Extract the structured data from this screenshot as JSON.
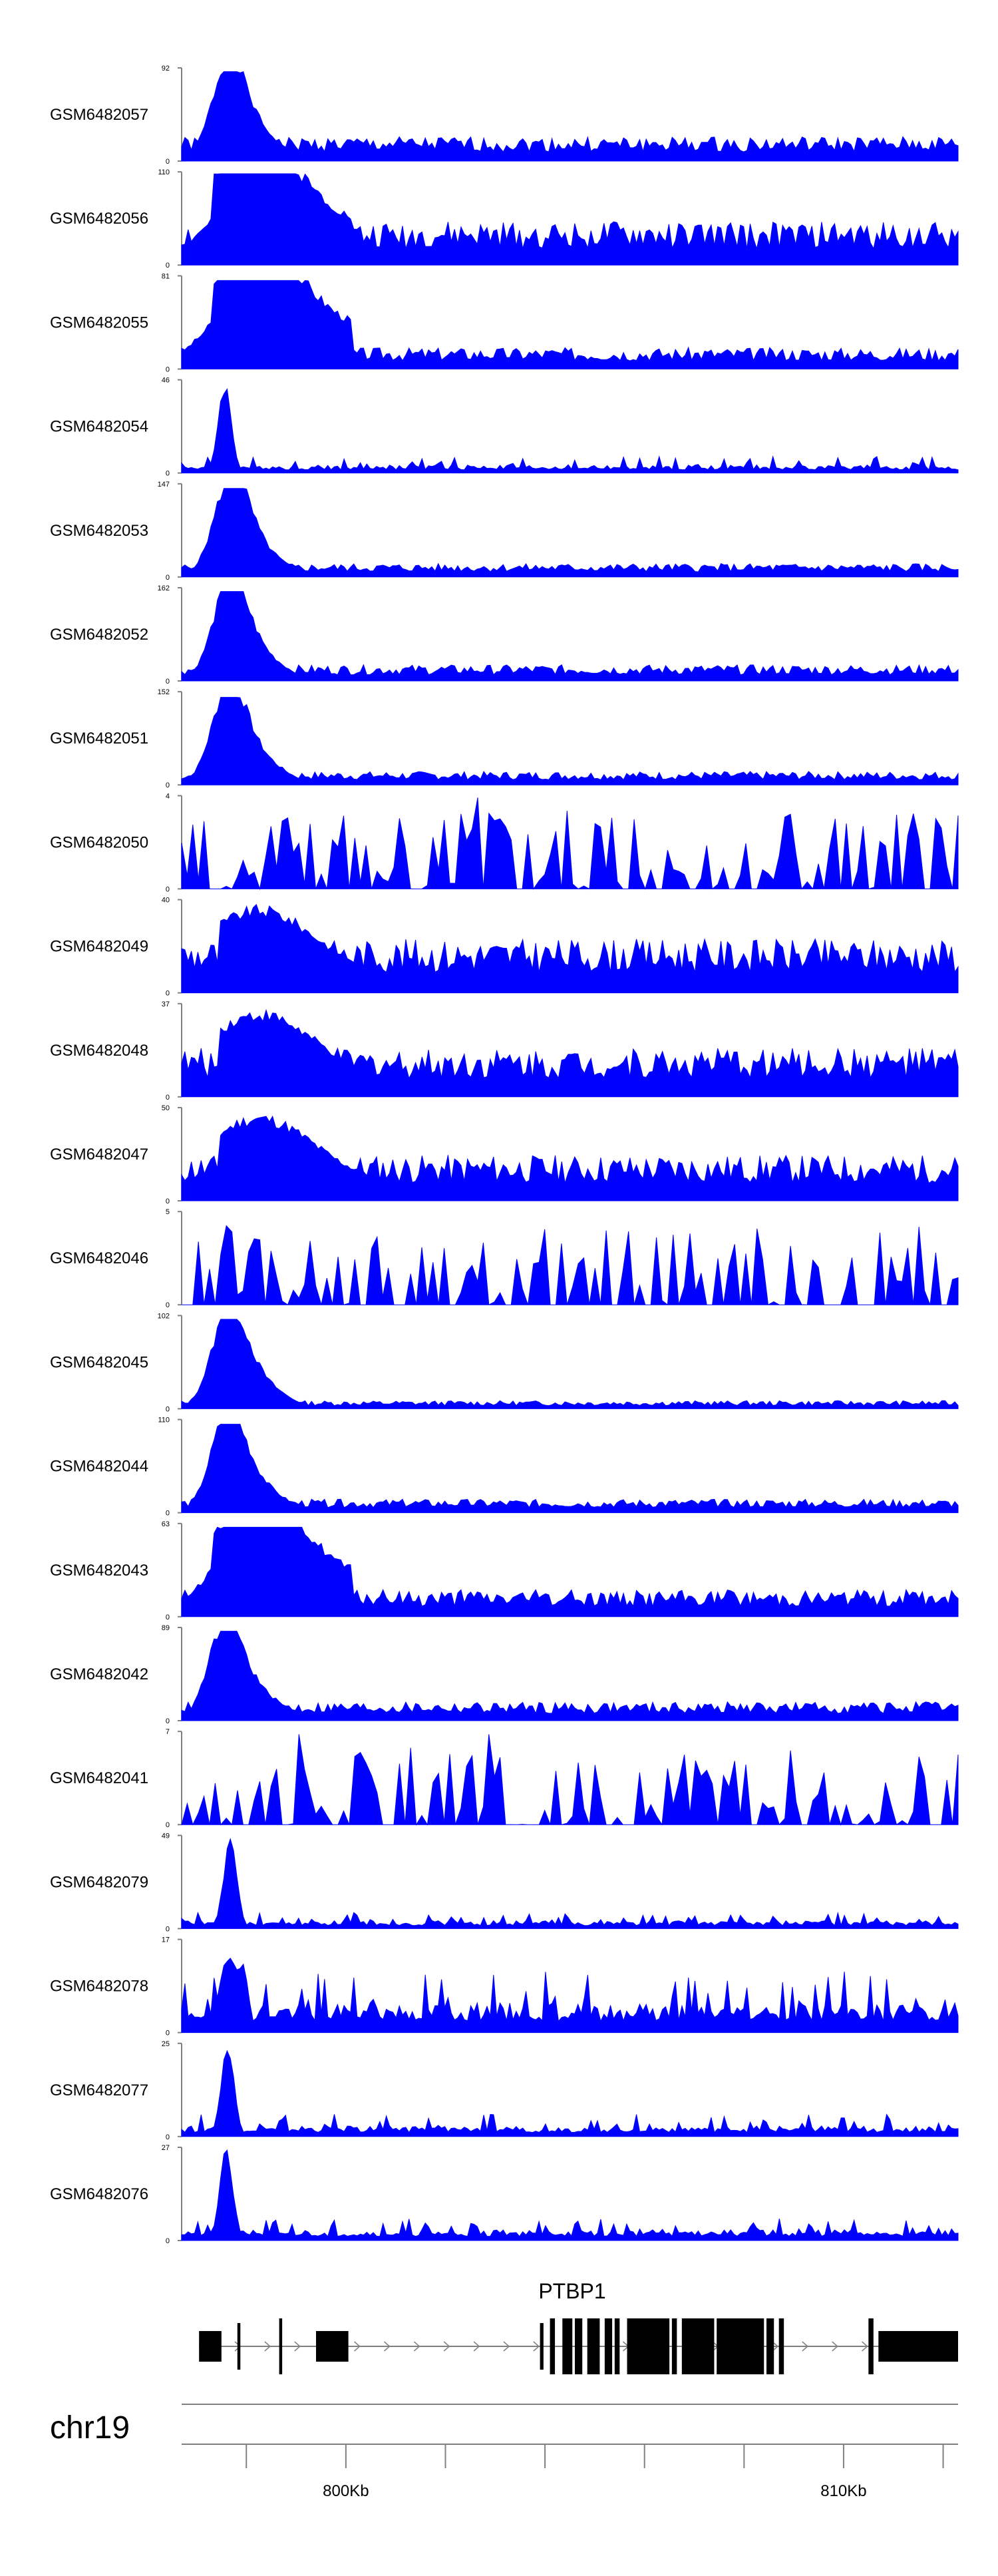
{
  "chart_data": {
    "type": "area",
    "title": "",
    "fill_color": "#0000ff",
    "axis_color": "#808080",
    "chromosome": "chr19",
    "x_range_kb": [
      796.7,
      812.3
    ],
    "x_ticks_kb": [
      798,
      800,
      802,
      804,
      806,
      808,
      810,
      812
    ],
    "x_tick_labels": [
      {
        "value": 800,
        "label": "800Kb"
      },
      {
        "value": 810,
        "label": "810Kb"
      }
    ],
    "tracks": [
      {
        "name": "GSM6482057",
        "max": 92,
        "max_label": "92",
        "zero_label": "0",
        "profile": "peak",
        "seed": 1,
        "level": 0.18,
        "peak": 0.96
      },
      {
        "name": "GSM6482056",
        "max": 110,
        "max_label": "110",
        "zero_label": "0",
        "profile": "broad",
        "seed": 2,
        "level": 0.32,
        "peak": 0.98
      },
      {
        "name": "GSM6482055",
        "max": 81,
        "max_label": "81",
        "zero_label": "0",
        "profile": "broad",
        "seed": 3,
        "level": 0.16,
        "peak": 0.95
      },
      {
        "name": "GSM6482054",
        "max": 46,
        "max_label": "46",
        "zero_label": "0",
        "profile": "spiky_peak",
        "seed": 4,
        "level": 0.06,
        "peak": 0.95
      },
      {
        "name": "GSM6482053",
        "max": 147,
        "max_label": "147",
        "zero_label": "0",
        "profile": "peak",
        "seed": 5,
        "level": 0.1,
        "peak": 0.95
      },
      {
        "name": "GSM6482052",
        "max": 162,
        "max_label": "162",
        "zero_label": "0",
        "profile": "peak",
        "seed": 6,
        "level": 0.12,
        "peak": 0.96
      },
      {
        "name": "GSM6482051",
        "max": 152,
        "max_label": "152",
        "zero_label": "0",
        "profile": "peak",
        "seed": 7,
        "level": 0.1,
        "peak": 0.94
      },
      {
        "name": "GSM6482050",
        "max": 4,
        "max_label": "4",
        "zero_label": "0",
        "profile": "spikes",
        "seed": 8,
        "level": 0.0,
        "peak": 0.98
      },
      {
        "name": "GSM6482049",
        "max": 40,
        "max_label": "40",
        "zero_label": "0",
        "profile": "high",
        "seed": 9,
        "level": 0.4,
        "peak": 0.96
      },
      {
        "name": "GSM6482048",
        "max": 37,
        "max_label": "37",
        "zero_label": "0",
        "profile": "high",
        "seed": 10,
        "level": 0.36,
        "peak": 0.96
      },
      {
        "name": "GSM6482047",
        "max": 50,
        "max_label": "50",
        "zero_label": "0",
        "profile": "high",
        "seed": 11,
        "level": 0.34,
        "peak": 0.98
      },
      {
        "name": "GSM6482046",
        "max": 5,
        "max_label": "5",
        "zero_label": "0",
        "profile": "spikes",
        "seed": 12,
        "level": 0.0,
        "peak": 0.98
      },
      {
        "name": "GSM6482045",
        "max": 102,
        "max_label": "102",
        "zero_label": "0",
        "profile": "peak",
        "seed": 13,
        "level": 0.06,
        "peak": 0.96
      },
      {
        "name": "GSM6482044",
        "max": 110,
        "max_label": "110",
        "zero_label": "0",
        "profile": "peak",
        "seed": 14,
        "level": 0.1,
        "peak": 0.95
      },
      {
        "name": "GSM6482043",
        "max": 63,
        "max_label": "63",
        "zero_label": "0",
        "profile": "broad",
        "seed": 15,
        "level": 0.2,
        "peak": 0.96
      },
      {
        "name": "GSM6482042",
        "max": 89,
        "max_label": "89",
        "zero_label": "0",
        "profile": "peak",
        "seed": 16,
        "level": 0.14,
        "peak": 0.96
      },
      {
        "name": "GSM6482041",
        "max": 7,
        "max_label": "7",
        "zero_label": "0",
        "profile": "spikes",
        "seed": 17,
        "level": 0.0,
        "peak": 0.97
      },
      {
        "name": "GSM6482079",
        "max": 49,
        "max_label": "49",
        "zero_label": "0",
        "profile": "spiky_peak",
        "seed": 18,
        "level": 0.06,
        "peak": 0.97
      },
      {
        "name": "GSM6482078",
        "max": 17,
        "max_label": "17",
        "zero_label": "0",
        "profile": "bumpy",
        "seed": 19,
        "level": 0.22,
        "peak": 0.92
      },
      {
        "name": "GSM6482077",
        "max": 25,
        "max_label": "25",
        "zero_label": "0",
        "profile": "spiky_peak",
        "seed": 20,
        "level": 0.08,
        "peak": 0.98
      },
      {
        "name": "GSM6482076",
        "max": 27,
        "max_label": "27",
        "zero_label": "0",
        "profile": "spiky_peak",
        "seed": 21,
        "level": 0.08,
        "peak": 0.97
      }
    ],
    "gene": {
      "name": "PTBP1",
      "strand": "+",
      "start_kb": 797.05,
      "end_kb": 812.3,
      "exons_kb": [
        [
          797.05,
          797.5
        ],
        [
          797.82,
          797.88
        ],
        [
          798.66,
          798.72
        ],
        [
          799.4,
          800.05
        ],
        [
          803.9,
          803.97
        ],
        [
          804.1,
          804.2
        ],
        [
          804.35,
          804.55
        ],
        [
          804.6,
          804.75
        ],
        [
          804.85,
          805.1
        ],
        [
          805.2,
          805.35
        ],
        [
          805.4,
          805.5
        ],
        [
          805.65,
          806.5
        ],
        [
          806.55,
          806.65
        ],
        [
          806.75,
          807.4
        ],
        [
          807.45,
          808.4
        ],
        [
          808.45,
          808.6
        ],
        [
          808.7,
          808.8
        ],
        [
          810.5,
          810.6
        ],
        [
          810.7,
          812.3
        ]
      ],
      "thin_exons_kb": [
        [
          797.82,
          797.88
        ],
        [
          803.9,
          803.97
        ]
      ]
    }
  }
}
